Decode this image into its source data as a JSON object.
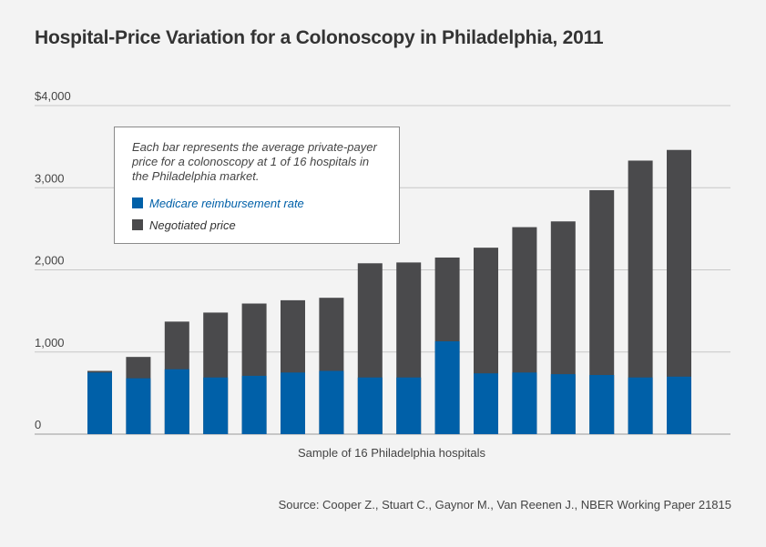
{
  "title": "Hospital-Price Variation for a Colonoscopy in Philadelphia, 2011",
  "source": "Source: Cooper Z., Stuart C., Gaynor M., Van Reenen J., NBER Working Paper 21815",
  "legend": {
    "note": "Each bar represents the average private-payer price for a colonoscopy at 1 of 16 hospitals in the Philadelphia market.",
    "items": [
      {
        "label": "Medicare reimbursement rate",
        "color": "#0060a8"
      },
      {
        "label": "Negotiated price",
        "color": "#4a4a4c"
      }
    ]
  },
  "chart_data": {
    "type": "bar",
    "stacked": false,
    "overlay": true,
    "title": "Hospital-Price Variation for a Colonoscopy in Philadelphia, 2011",
    "xlabel": "Sample of 16 Philadelphia hospitals",
    "ylabel": "",
    "ylim": [
      0,
      4000
    ],
    "yticks": [
      {
        "value": 0,
        "label": "0"
      },
      {
        "value": 1000,
        "label": "1,000"
      },
      {
        "value": 2000,
        "label": "2,000"
      },
      {
        "value": 3000,
        "label": "3,000"
      },
      {
        "value": 4000,
        "label": "$4,000"
      }
    ],
    "grid": true,
    "legend_position": "top-left",
    "categories": [
      "",
      "",
      "",
      "",
      "",
      "",
      "",
      "",
      "",
      "",
      "",
      "",
      "",
      "",
      "",
      ""
    ],
    "series": [
      {
        "name": "Negotiated price",
        "color": "#4a4a4c",
        "values": [
          770,
          940,
          1370,
          1480,
          1590,
          1630,
          1660,
          2080,
          2090,
          2150,
          2270,
          2520,
          2590,
          2970,
          3330,
          3460
        ]
      },
      {
        "name": "Medicare reimbursement rate",
        "color": "#0060a8",
        "values": [
          750,
          680,
          790,
          690,
          710,
          750,
          770,
          690,
          690,
          1130,
          740,
          750,
          730,
          720,
          690,
          700
        ]
      }
    ]
  }
}
